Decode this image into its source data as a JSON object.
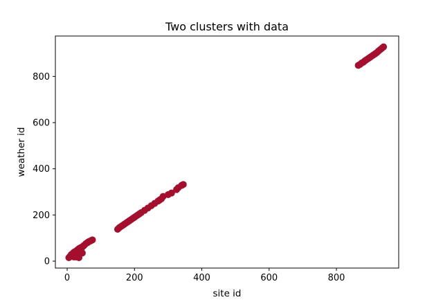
{
  "chart_data": {
    "type": "scatter",
    "title": "Two clusters with data",
    "xlabel": "site id",
    "ylabel": "weather id",
    "xlim": [
      -35,
      985
    ],
    "ylim": [
      -30,
      975
    ],
    "xticks": [
      0,
      200,
      400,
      600,
      800
    ],
    "yticks": [
      0,
      200,
      400,
      600,
      800
    ],
    "grid": false,
    "marker_color": "#a50f2e",
    "series": [
      {
        "x": [
          5,
          8,
          10,
          12,
          14,
          15,
          16,
          18,
          20,
          20,
          22,
          24,
          25,
          26,
          28,
          30,
          30,
          32,
          34,
          35,
          36,
          38,
          40,
          42,
          44,
          45,
          48,
          50,
          55,
          60,
          62,
          65,
          70,
          75,
          20,
          35,
          45,
          150,
          155,
          160,
          165,
          170,
          175,
          180,
          185,
          190,
          195,
          200,
          205,
          210,
          215,
          220,
          230,
          240,
          250,
          260,
          270,
          275,
          280,
          285,
          300,
          310,
          325,
          330,
          340,
          345,
          865,
          870,
          875,
          880,
          885,
          890,
          895,
          900,
          905,
          910,
          915,
          920,
          925,
          930,
          935,
          940
        ],
        "y": [
          15,
          20,
          22,
          28,
          30,
          25,
          32,
          35,
          38,
          20,
          40,
          30,
          42,
          18,
          45,
          48,
          20,
          50,
          40,
          52,
          55,
          45,
          58,
          55,
          60,
          62,
          65,
          68,
          75,
          80,
          82,
          85,
          88,
          92,
          18,
          15,
          35,
          138,
          145,
          150,
          155,
          160,
          165,
          170,
          175,
          180,
          185,
          190,
          195,
          200,
          205,
          210,
          220,
          230,
          240,
          250,
          260,
          265,
          270,
          280,
          288,
          295,
          310,
          318,
          328,
          332,
          848,
          852,
          858,
          862,
          868,
          873,
          878,
          883,
          888,
          893,
          898,
          903,
          910,
          916,
          922,
          928
        ]
      }
    ]
  }
}
